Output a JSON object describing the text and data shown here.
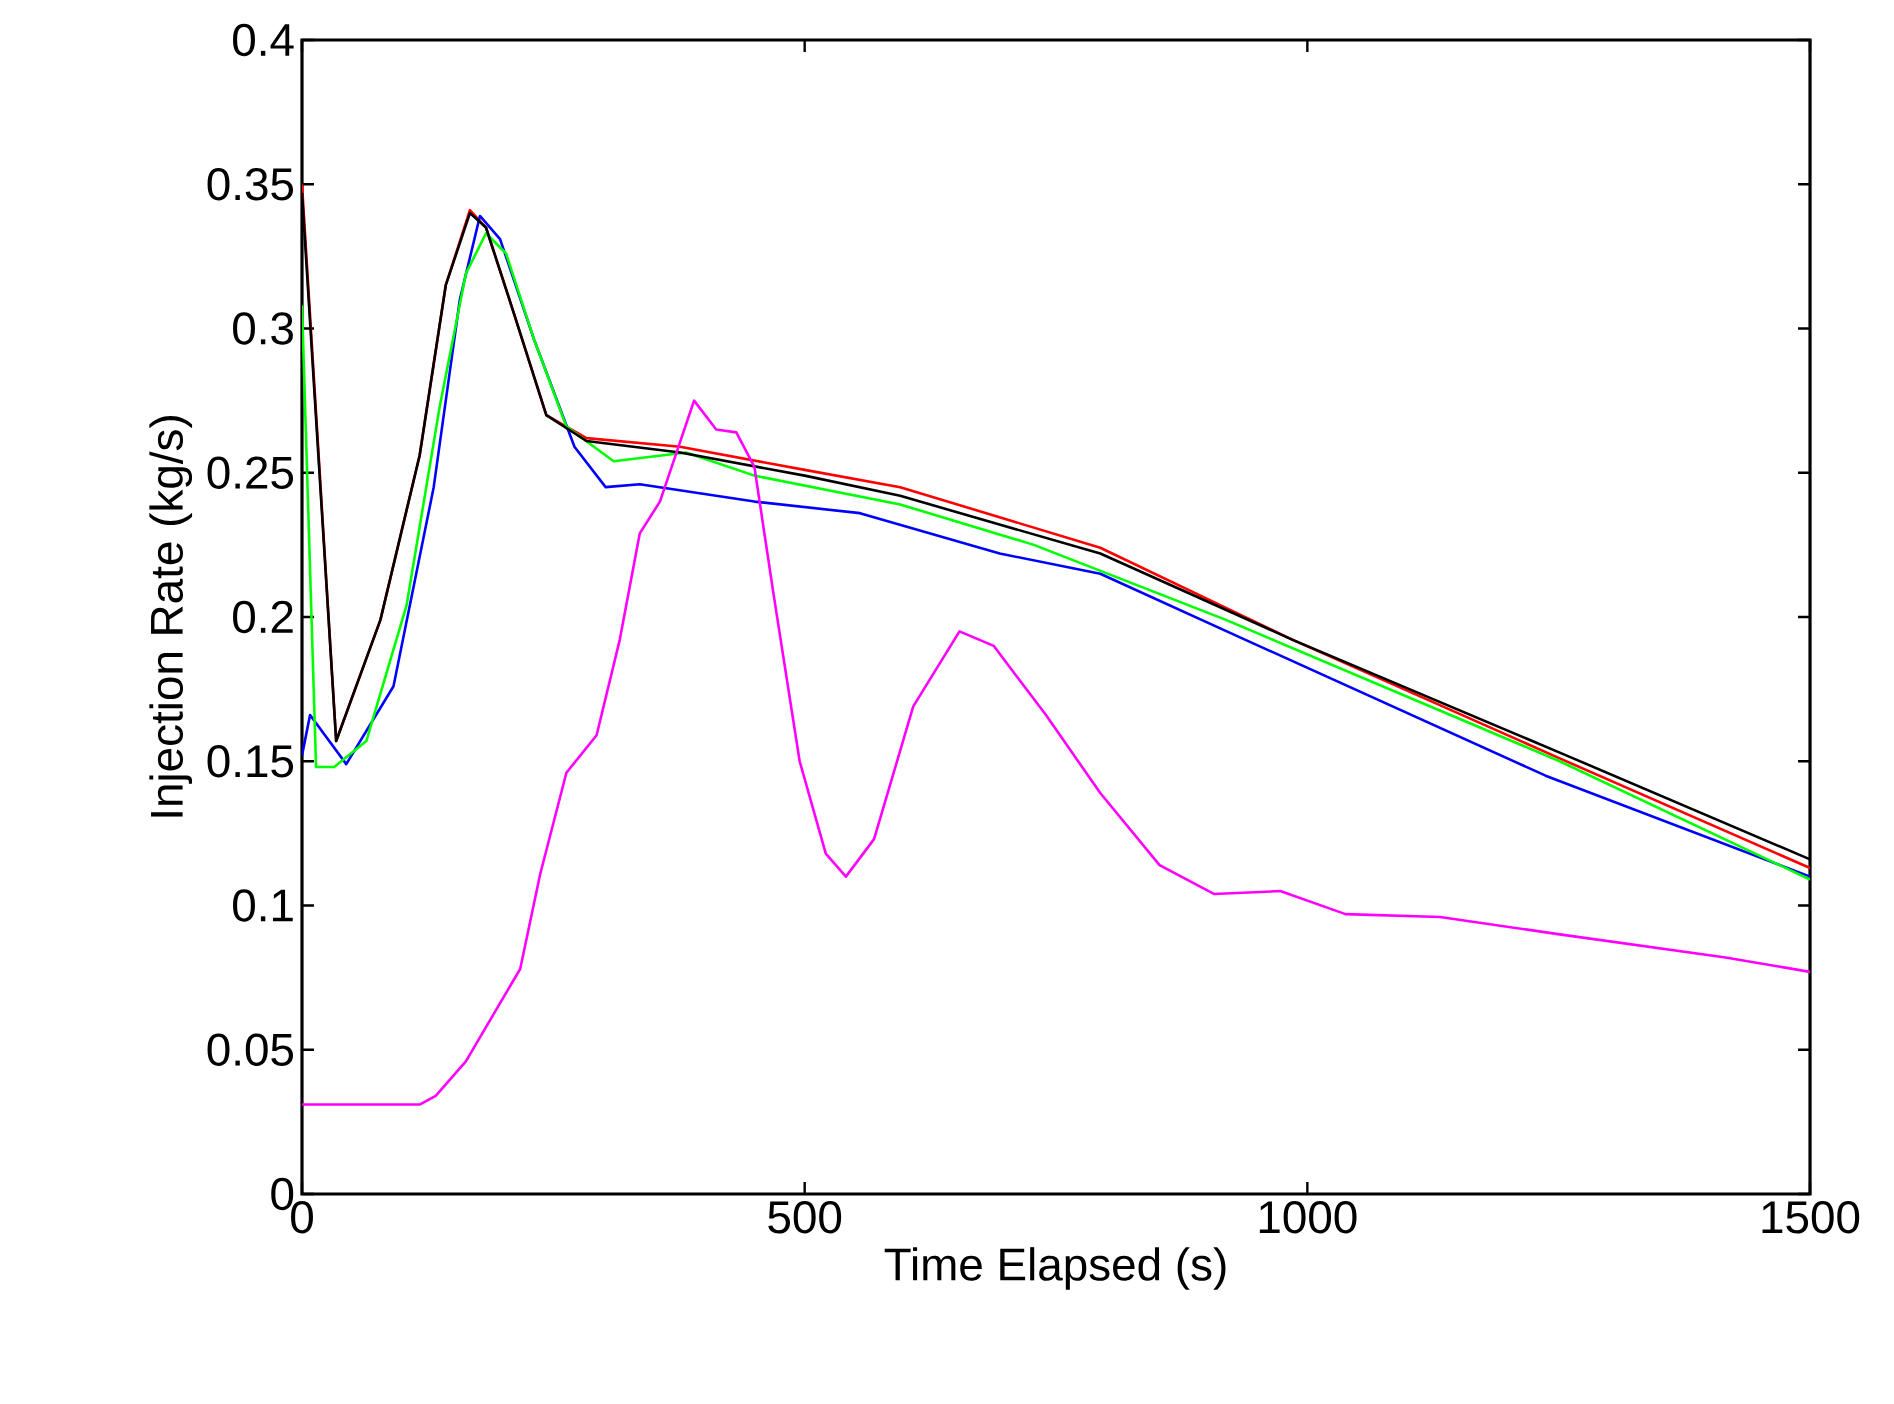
{
  "chart_data": {
    "type": "line",
    "xlabel": "Time Elapsed (s)",
    "ylabel": "Injection Rate (kg/s)",
    "xlim": [
      0,
      1500
    ],
    "ylim": [
      0,
      0.4
    ],
    "xticks": [
      0,
      500,
      1000,
      1500
    ],
    "yticks": [
      0,
      0.05,
      0.1,
      0.15,
      0.2,
      0.25,
      0.3,
      0.35,
      0.4
    ],
    "line_style": "solid",
    "marker": "none",
    "series": [
      {
        "color": "#ff0000",
        "x": [
          0,
          34,
          78,
          117,
          143,
          167,
          183,
          211,
          243,
          283,
          376,
          500,
          595,
          794,
          986,
          1251,
          1500
        ],
        "values": [
          0.35,
          0.157,
          0.199,
          0.256,
          0.315,
          0.341,
          0.335,
          0.305,
          0.27,
          0.262,
          0.259,
          0.251,
          0.245,
          0.224,
          0.192,
          0.151,
          0.113
        ]
      },
      {
        "color": "#0000ff",
        "x": [
          0,
          8,
          44,
          91,
          131,
          157,
          177,
          197,
          231,
          271,
          302,
          336,
          450,
          555,
          694,
          794,
          939,
          1237,
          1500
        ],
        "values": [
          0.152,
          0.166,
          0.149,
          0.176,
          0.245,
          0.31,
          0.339,
          0.331,
          0.296,
          0.259,
          0.245,
          0.246,
          0.24,
          0.236,
          0.222,
          0.215,
          0.192,
          0.145,
          0.11
        ]
      },
      {
        "color": "#00ff00",
        "x": [
          0,
          14,
          32,
          64,
          104,
          137,
          163,
          183,
          203,
          231,
          263,
          310,
          382,
          450,
          595,
          728,
          919,
          1251,
          1500
        ],
        "values": [
          0.308,
          0.148,
          0.148,
          0.157,
          0.204,
          0.273,
          0.319,
          0.333,
          0.326,
          0.296,
          0.266,
          0.254,
          0.257,
          0.249,
          0.239,
          0.225,
          0.199,
          0.15,
          0.109
        ]
      },
      {
        "color": "#000000",
        "x": [
          0,
          34,
          78,
          117,
          143,
          167,
          183,
          211,
          243,
          283,
          376,
          500,
          595,
          794,
          986,
          1251,
          1500
        ],
        "values": [
          0.347,
          0.157,
          0.199,
          0.256,
          0.315,
          0.34,
          0.335,
          0.305,
          0.27,
          0.261,
          0.257,
          0.249,
          0.242,
          0.222,
          0.192,
          0.153,
          0.116
        ]
      },
      {
        "color": "#ff00ff",
        "x": [
          0,
          117,
          133,
          163,
          217,
          237,
          263,
          293,
          316,
          336,
          356,
          390,
          412,
          432,
          450,
          469,
          495,
          521,
          541,
          569,
          608,
          654,
          688,
          740,
          794,
          853,
          907,
          973,
          1038,
          1132,
          1251,
          1416,
          1500
        ],
        "values": [
          0.031,
          0.031,
          0.034,
          0.046,
          0.078,
          0.111,
          0.146,
          0.159,
          0.192,
          0.229,
          0.24,
          0.275,
          0.265,
          0.264,
          0.252,
          0.208,
          0.15,
          0.118,
          0.11,
          0.123,
          0.169,
          0.195,
          0.19,
          0.166,
          0.139,
          0.114,
          0.104,
          0.105,
          0.097,
          0.096,
          0.09,
          0.082,
          0.077
        ]
      }
    ]
  }
}
